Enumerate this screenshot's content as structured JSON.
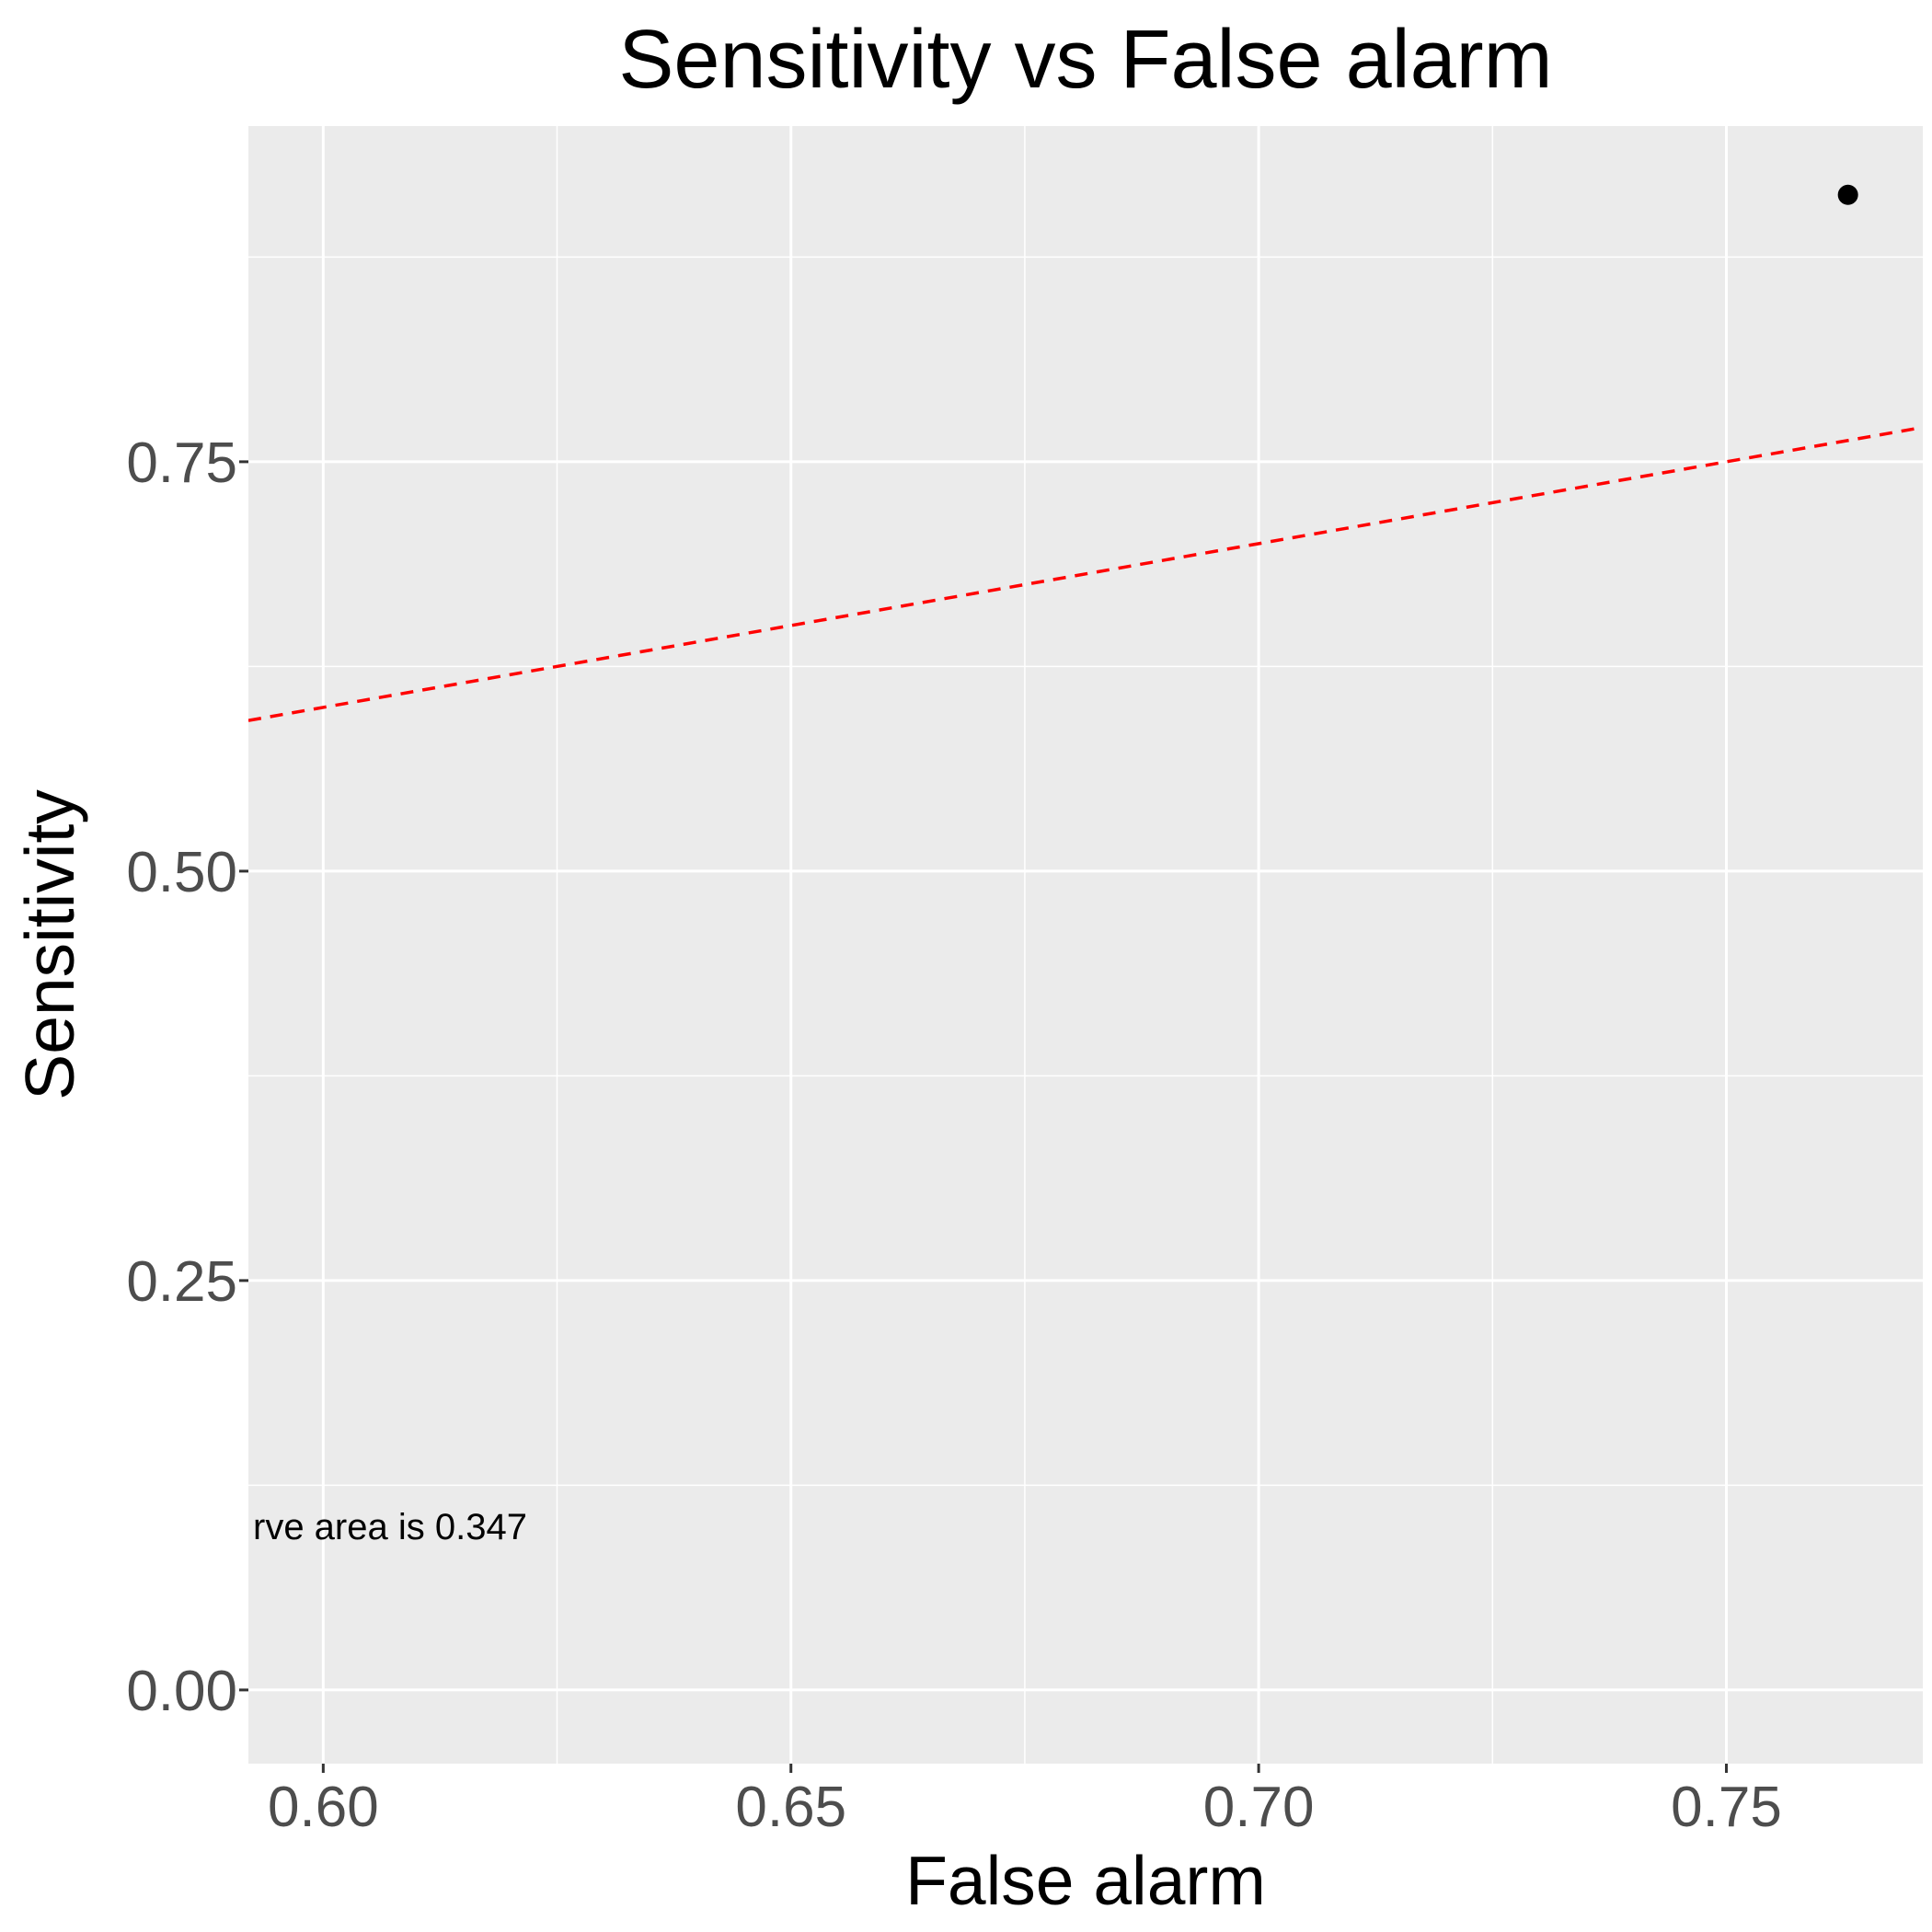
{
  "chart_data": {
    "type": "scatter",
    "title": "Sensitivity vs False alarm",
    "xlabel": "False alarm",
    "ylabel": "Sensitivity",
    "xlim": [
      0.592,
      0.771
    ],
    "ylim": [
      -0.045,
      0.955
    ],
    "x_ticks": [
      0.6,
      0.65,
      0.7,
      0.75
    ],
    "x_tick_labels": [
      "0.60",
      "0.65",
      "0.70",
      "0.75"
    ],
    "y_ticks": [
      0.0,
      0.25,
      0.5,
      0.75
    ],
    "y_tick_labels": [
      "0.00",
      "0.25",
      "0.50",
      "0.75"
    ],
    "points": [
      {
        "x": 0.763,
        "y": 0.913
      }
    ],
    "reference_line": {
      "slope": 1,
      "intercept": 0,
      "style": "dashed",
      "color": "#ff0000"
    },
    "annotation": {
      "text": "rve area is 0.347",
      "x": 0.592,
      "y": 0.1
    },
    "grid": true,
    "panel_background": "#ebebeb",
    "grid_color": "#ffffff",
    "point_color": "#000000"
  }
}
